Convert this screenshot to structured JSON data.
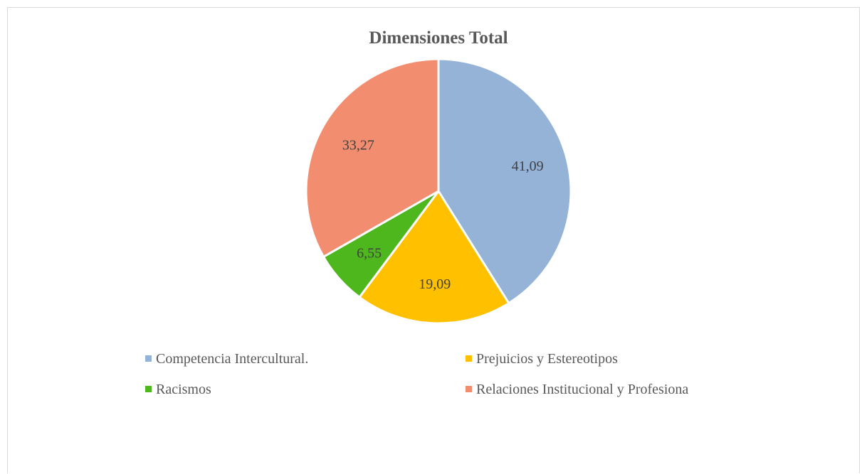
{
  "chart_data": {
    "type": "pie",
    "title": "Dimensiones Total",
    "categories": [
      "Competencia Intercultural.",
      "Prejuicios y Estereotipos",
      "Racismos",
      "Relaciones Institucional y Profesiona"
    ],
    "values": [
      41.09,
      19.09,
      6.55,
      33.27
    ],
    "value_labels": [
      "41,09",
      "19,09",
      "6,55",
      "33,27"
    ],
    "colors": [
      "#95b3d7",
      "#ffc000",
      "#4eb71d",
      "#f28e6f"
    ],
    "legend_position": "bottom"
  }
}
